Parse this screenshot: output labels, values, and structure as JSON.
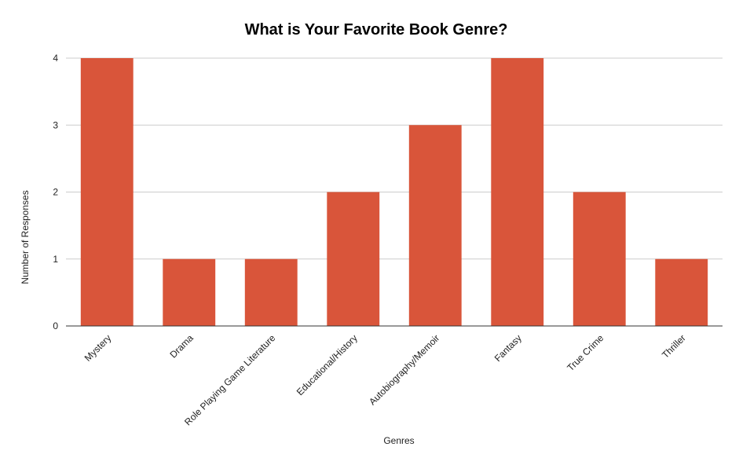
{
  "chart_data": {
    "type": "bar",
    "title": "What is Your Favorite Book Genre?",
    "xlabel": "Genres",
    "ylabel": "Number of Responses",
    "categories": [
      "Mystery",
      "Drama",
      "Role Playing Game Literature",
      "Educational/History",
      "Autobiography/Memoir",
      "Fantasy",
      "True Crime",
      "Thriller"
    ],
    "values": [
      4,
      1,
      1,
      2,
      3,
      4,
      2,
      1
    ],
    "ylim": [
      0,
      4
    ],
    "yticks": [
      "0",
      "1",
      "2",
      "3",
      "4"
    ],
    "grid": true,
    "legend": "none",
    "bar_color": "#d9553a",
    "grid_color": "#cccccc",
    "axis_color": "#333333"
  }
}
